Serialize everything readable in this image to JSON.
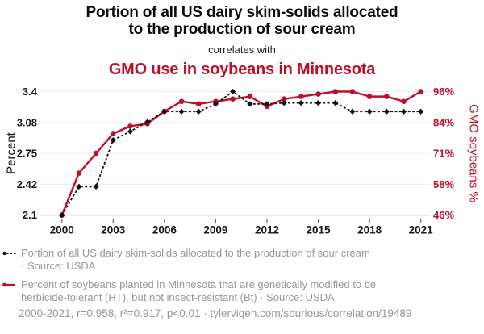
{
  "header": {
    "title_line1": "Portion of all US dairy skim-solids allocated",
    "title_line2": "to the production of sour cream",
    "connector": "correlates with",
    "variable2": "GMO use in soybeans in Minnesota"
  },
  "colors": {
    "accent_red": "#be0f28",
    "series_black": "#111111",
    "legend_gray": "#979797",
    "gridline": "#eaeaea",
    "axis_line": "#b9b9b9",
    "tick_mark": "#666666",
    "tick_label": "#191919"
  },
  "chart_data": {
    "type": "line",
    "x": [
      2000,
      2001,
      2002,
      2003,
      2004,
      2005,
      2006,
      2007,
      2008,
      2009,
      2010,
      2011,
      2012,
      2013,
      2014,
      2015,
      2016,
      2017,
      2018,
      2019,
      2020,
      2021
    ],
    "x_tick_labels": [
      "2000",
      "2003",
      "2006",
      "2009",
      "2012",
      "2015",
      "2018",
      "2021"
    ],
    "left_axis": {
      "label": "Percent",
      "range": [
        2.1,
        3.4
      ],
      "ticks": [
        2.1,
        2.425,
        2.75,
        3.075,
        3.4
      ],
      "tick_labels": [
        "2.1",
        "2.42",
        "2.75",
        "3.08",
        "3.4"
      ]
    },
    "right_axis": {
      "label": "GMO soybeans %",
      "range": [
        46,
        96
      ],
      "ticks": [
        46,
        58.5,
        71,
        83.5,
        96
      ],
      "tick_labels": [
        "46%",
        "58%",
        "71%",
        "84%",
        "96%"
      ]
    },
    "grid": true,
    "legend_position": "bottom",
    "series": [
      {
        "name": "Portion of all US dairy skim-solids allocated to the production of sour cream",
        "axis": "left",
        "style": "dashed-diamond",
        "color": "#111111",
        "values": [
          2.1,
          2.4,
          2.4,
          2.89,
          2.98,
          3.08,
          3.19,
          3.19,
          3.19,
          3.27,
          3.4,
          3.27,
          3.27,
          3.28,
          3.28,
          3.28,
          3.28,
          3.19,
          3.19,
          3.19,
          3.19,
          3.19
        ]
      },
      {
        "name": "Percent of soybeans planted in Minnesota that are genetically modified to be herbicide-tolerant (HT), but not insect-resistant (Bt)",
        "axis": "right",
        "style": "solid-circle",
        "color": "#be0f28",
        "values": [
          46,
          63,
          71,
          79,
          82,
          83,
          88,
          92,
          91,
          92,
          93,
          94,
          90,
          93,
          94,
          95,
          96,
          96,
          94,
          94,
          92,
          96
        ]
      }
    ]
  },
  "legend": {
    "items": [
      {
        "marker": "black-dashed-diamond",
        "line1": "Portion of all US dairy skim-solids allocated to the production of sour cream",
        "line2": "· Source: USDA"
      },
      {
        "marker": "red-solid-circle",
        "line1": "Percent of soybeans planted in Minnesota that are genetically modified to be",
        "line2": "herbicide-tolerant (HT), but not insect-resistant (Bt) · Source: USDA"
      }
    ]
  },
  "footer": {
    "text": "2000-2021, r=0.958, r²=0.917, p<0.01 · tylervigen.com/spurious/correlation/19489"
  }
}
